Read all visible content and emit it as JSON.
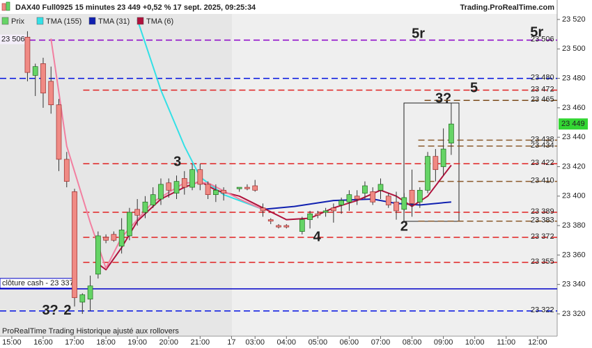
{
  "chart_data": {
    "type": "candlestick",
    "title": "DAX40 Full0925 15 minutes 23 449 +0,52 % 17 sept. 2025, 09:25:34",
    "source": "Trading.ProRealTime.com",
    "footer": "ProRealTime Trading  Historique ajusté aux rollovers",
    "xlim": [
      -3.5,
      67.5
    ],
    "ylim": [
      23305,
      23525
    ],
    "xticks": [
      {
        "value": -2,
        "label": "15:00"
      },
      {
        "value": 2,
        "label": "16:00"
      },
      {
        "value": 6,
        "label": "17:00"
      },
      {
        "value": 10,
        "label": "18:00"
      },
      {
        "value": 14,
        "label": "19:00"
      },
      {
        "value": 18,
        "label": "20:00"
      },
      {
        "value": 22,
        "label": "21:00"
      },
      {
        "value": 26,
        "label": "17"
      },
      {
        "value": 29,
        "label": "03:00"
      },
      {
        "value": 33,
        "label": "04:00"
      },
      {
        "value": 37,
        "label": "05:00"
      },
      {
        "value": 41,
        "label": "06:00"
      },
      {
        "value": 45,
        "label": "07:00"
      },
      {
        "value": 49,
        "label": "08:00"
      },
      {
        "value": 53,
        "label": "09:00"
      },
      {
        "value": 57,
        "label": "10:00"
      },
      {
        "value": 61,
        "label": "11:00"
      },
      {
        "value": 65,
        "label": "12:00"
      }
    ],
    "yticks": [
      {
        "value": 23320,
        "label": "23 320"
      },
      {
        "value": 23340,
        "label": "23 340"
      },
      {
        "value": 23360,
        "label": "23 360"
      },
      {
        "value": 23380,
        "label": "23 380"
      },
      {
        "value": 23400,
        "label": "23 400"
      },
      {
        "value": 23420,
        "label": "23 420"
      },
      {
        "value": 23440,
        "label": "23 440"
      },
      {
        "value": 23460,
        "label": "23 460"
      },
      {
        "value": 23480,
        "label": "23 480"
      },
      {
        "value": 23500,
        "label": "23 500"
      },
      {
        "value": 23520,
        "label": "23 520"
      }
    ],
    "candles": {
      "name": "Prix",
      "up_color": "#66d466",
      "down_color": "#f08a84",
      "x": [
        0,
        1,
        2,
        3,
        4,
        5,
        6,
        7,
        8,
        9,
        10,
        11,
        12,
        13,
        14,
        15,
        16,
        17,
        18,
        19,
        20,
        21,
        22,
        23,
        24,
        25,
        27,
        28,
        29,
        30,
        31,
        32,
        33,
        35,
        36,
        37,
        38,
        39,
        40,
        41,
        42,
        43,
        44,
        45,
        46,
        47,
        48,
        49,
        50,
        51,
        52,
        53,
        54
      ],
      "open": [
        23508,
        23482,
        23490,
        23478,
        23462,
        23425,
        23403,
        23328,
        23330,
        23347,
        23372,
        23374,
        23366,
        23373,
        23391,
        23389,
        23394,
        23398,
        23409,
        23402,
        23412,
        23406,
        23418,
        23408,
        23401,
        23404,
        23405,
        23406,
        23407,
        23392,
        23384,
        23380,
        23380,
        23376,
        23384,
        23388,
        23389,
        23392,
        23394,
        23396,
        23400,
        23402,
        23403,
        23404,
        23400,
        23396,
        23391,
        23404,
        23396,
        23404,
        23427,
        23420,
        23436
      ],
      "high": [
        23512,
        23490,
        23494,
        23488,
        23466,
        23430,
        23405,
        23334,
        23346,
        23376,
        23374,
        23376,
        23385,
        23392,
        23398,
        23400,
        23406,
        23412,
        23412,
        23414,
        23417,
        23422,
        23422,
        23410,
        23408,
        23406,
        23406,
        23408,
        23411,
        23395,
        23385,
        23381,
        23381,
        23386,
        23390,
        23390,
        23392,
        23395,
        23399,
        23404,
        23404,
        23410,
        23406,
        23412,
        23402,
        23403,
        23402,
        23418,
        23406,
        23430,
        23432,
        23446,
        23463
      ],
      "low": [
        23478,
        23468,
        23460,
        23456,
        23417,
        23406,
        23325,
        23320,
        23322,
        23344,
        23368,
        23369,
        23361,
        23370,
        23380,
        23385,
        23392,
        23394,
        23399,
        23398,
        23401,
        23404,
        23404,
        23398,
        23396,
        23397,
        23403,
        23404,
        23403,
        23386,
        23381,
        23378,
        23378,
        23374,
        23378,
        23385,
        23386,
        23382,
        23388,
        23390,
        23394,
        23398,
        23394,
        23398,
        23392,
        23384,
        23390,
        23386,
        23392,
        23402,
        23410,
        23414,
        23428
      ],
      "close": [
        23484,
        23488,
        23470,
        23462,
        23425,
        23410,
        23331,
        23333,
        23339,
        23373,
        23370,
        23370,
        23377,
        23389,
        23387,
        23396,
        23401,
        23408,
        23404,
        23410,
        23406,
        23418,
        23408,
        23401,
        23404,
        23402,
        23406,
        23405,
        23404,
        23390,
        23383,
        23379,
        23379,
        23384,
        23388,
        23387,
        23390,
        23390,
        23397,
        23401,
        23398,
        23407,
        23396,
        23408,
        23394,
        23390,
        23399,
        23395,
        23404,
        23427,
        23418,
        23432,
        23449
      ]
    },
    "series": [
      {
        "name": "TMA (155)",
        "color": "#33e0e6",
        "x": [
          14,
          17,
          20,
          22,
          25,
          28,
          30
        ],
        "values": [
          23520,
          23472,
          23434,
          23413,
          23401,
          23395,
          23391
        ]
      },
      {
        "name": "TMA (31)",
        "color": "#1020b0",
        "x": [
          30,
          34,
          39,
          44,
          47,
          50,
          54
        ],
        "values": [
          23391,
          23393,
          23397,
          23398,
          23395,
          23394,
          23396
        ]
      },
      {
        "name": "TMA (6)",
        "color": "#b0123c",
        "x": [
          9,
          10,
          12,
          14,
          17,
          20,
          22,
          24,
          27,
          30,
          33,
          36,
          39,
          42,
          45,
          47,
          49,
          51,
          53,
          54
        ],
        "values": [
          23354,
          23350,
          23365,
          23383,
          23398,
          23406,
          23410,
          23404,
          23400,
          23392,
          23384,
          23385,
          23392,
          23397,
          23404,
          23400,
          23393,
          23400,
          23414,
          23421
        ]
      },
      {
        "color": "#f27fa0",
        "x": [
          3,
          5,
          8,
          10,
          12,
          16,
          20,
          23,
          27,
          30
        ],
        "values": [
          23507,
          23434,
          23382,
          23351,
          23372,
          23396,
          23409,
          23409,
          23398,
          23391
        ]
      }
    ],
    "levels": [
      {
        "value": 23506,
        "label": "23 506",
        "color": "#8a00c8",
        "style": "dashed"
      },
      {
        "value": 23480,
        "label": "23 480",
        "color": "#0010e0",
        "style": "dashed"
      },
      {
        "value": 23472,
        "label": "23 472",
        "color": "#e02020",
        "style": "dashed",
        "x_from": 7.1
      },
      {
        "value": 23465,
        "label": "23 465",
        "color": "#7a4a1a",
        "style": "dashed",
        "x_from": 50.6
      },
      {
        "value": 23438,
        "label": "23 438",
        "color": "#8b5a2b",
        "style": "dashed",
        "x_from": 49.8
      },
      {
        "value": 23434,
        "label": "23 434",
        "color": "#8b5a2b",
        "style": "dashed",
        "x_from": 49.8
      },
      {
        "value": 23422,
        "label": "23 422",
        "color": "#e02020",
        "style": "dashed",
        "x_from": 7.1
      },
      {
        "value": 23410,
        "label": "23 410",
        "color": "#8b5a2b",
        "style": "dashed",
        "x_from": 49.8
      },
      {
        "value": 23389,
        "label": "23 389",
        "color": "#e02020",
        "style": "dashed",
        "x_from": 7.1
      },
      {
        "value": 23383,
        "label": "23 383",
        "color": "#8b5a2b",
        "style": "dashed",
        "x_from": 49.8
      },
      {
        "value": 23372,
        "label": "23 372",
        "color": "#e02020",
        "style": "dashed",
        "x_from": 7.1
      },
      {
        "value": 23355,
        "label": "23 355",
        "color": "#e02020",
        "style": "dashed",
        "x_from": 7.1
      },
      {
        "value": 23337,
        "label": "clôture cash -  23 337",
        "color": "#0000c8",
        "style": "solid"
      },
      {
        "value": 23322,
        "label": "23 322",
        "color": "#e02020",
        "style": "dashed",
        "line_color": "#0010e0"
      }
    ],
    "last_price": {
      "value": 23449,
      "label": "23 449",
      "color": "#33d633"
    },
    "annotations": [
      {
        "text": "5r",
        "x": 49.8,
        "y": 23510,
        "color": "#000000"
      },
      {
        "text": "5r",
        "x": 64.9,
        "y": 23511,
        "color": "#8a00c8"
      },
      {
        "text": "3",
        "x": 19.1,
        "y": 23423,
        "color": "#e02020"
      },
      {
        "text": "4",
        "x": 36.9,
        "y": 23372,
        "color": "#e02020"
      },
      {
        "text": "5",
        "x": 56.9,
        "y": 23473,
        "color": "#e02020"
      },
      {
        "text": "3?",
        "x": 2.9,
        "y": 23322,
        "color": "#1030c0"
      },
      {
        "text": "2",
        "x": 5.1,
        "y": 23322,
        "color": "#e02020"
      },
      {
        "text": "3?",
        "x": 53,
        "y": 23466,
        "color": "#8b4513"
      },
      {
        "text": "2",
        "x": 48,
        "y": 23379,
        "color": "#8b4513"
      }
    ]
  }
}
